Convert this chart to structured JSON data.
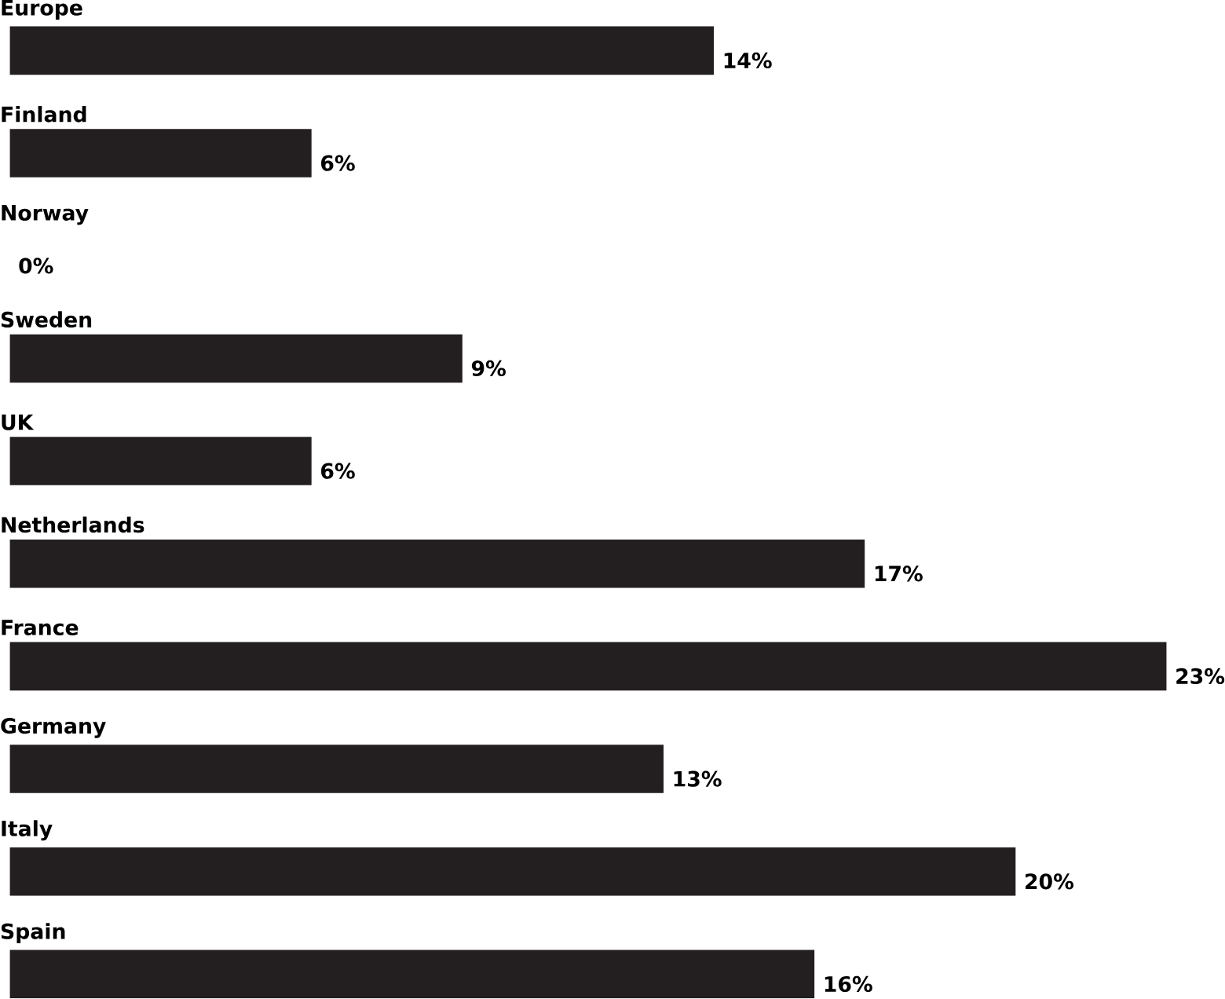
{
  "chart_data": {
    "type": "bar",
    "orientation": "horizontal",
    "categories": [
      "Europe",
      "Finland",
      "Norway",
      "Sweden",
      "UK",
      "Netherlands",
      "France",
      "Germany",
      "Italy",
      "Spain"
    ],
    "values": [
      14,
      6,
      0,
      9,
      6,
      17,
      23,
      13,
      20,
      16
    ],
    "value_labels": [
      "14%",
      "6%",
      "0%",
      "9%",
      "6%",
      "17%",
      "23%",
      "13%",
      "20%",
      "16%"
    ],
    "color": "#231f20"
  }
}
